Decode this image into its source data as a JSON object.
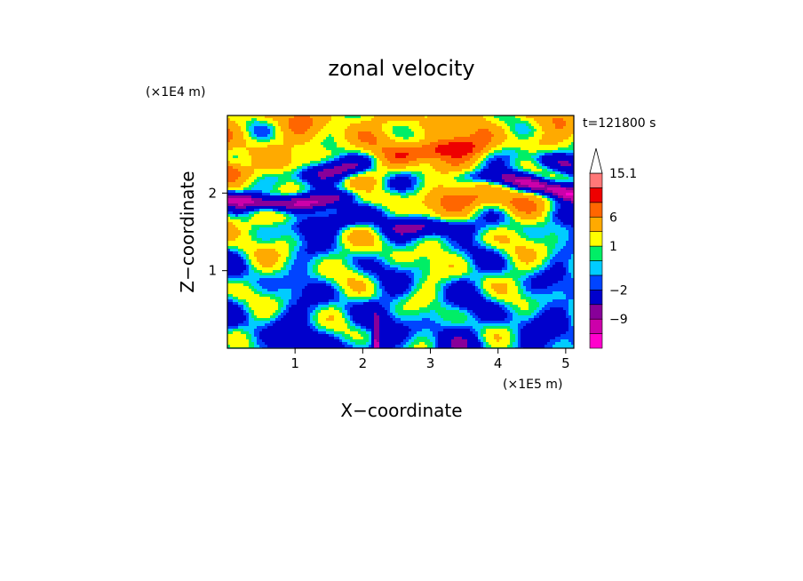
{
  "chart_data": {
    "type": "heatmap",
    "title": "zonal velocity",
    "xlabel": "X−coordinate",
    "ylabel": "Z−coordinate",
    "x_scale_label": "(×1E5 m)",
    "y_scale_label": "(×1E4 m)",
    "time_label": "t=121800 s",
    "xlim": [
      0,
      5.12
    ],
    "ylim": [
      0,
      3.0
    ],
    "x_ticks": [
      1,
      2,
      3,
      4,
      5
    ],
    "y_ticks": [
      1,
      2
    ],
    "x_tick_labels": [
      "1",
      "2",
      "3",
      "4",
      "5"
    ],
    "y_tick_labels": [
      "1",
      "2"
    ],
    "colorbar": {
      "levels": [
        -12,
        -9,
        -6,
        -2,
        -1,
        0,
        1,
        3,
        6,
        9,
        12,
        15.1
      ],
      "colors": [
        "#ff00cc",
        "#cc00aa",
        "#880099",
        "#0000cc",
        "#0044ff",
        "#00ccff",
        "#00ee66",
        "#ffff00",
        "#ffaa00",
        "#ff6600",
        "#ee0000",
        "#ff7777",
        "#ffbbbb"
      ],
      "labels": [
        "15.1",
        "6",
        "1",
        "−2",
        "−9"
      ],
      "label_values": [
        15.1,
        6,
        1,
        -2,
        -9
      ]
    },
    "grid": false
  }
}
